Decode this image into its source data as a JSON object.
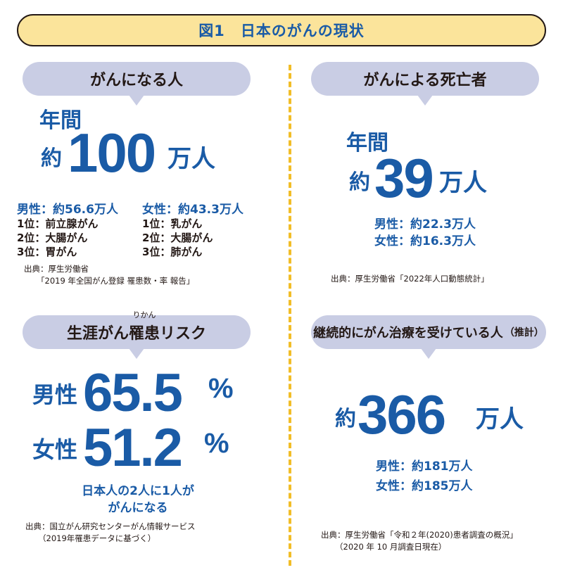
{
  "title": {
    "fig": "図1",
    "text": "日本のがんの現状"
  },
  "incidence": {
    "heading": "がんになる人",
    "label_year": "年間",
    "prefix": "約",
    "number": "100",
    "unit": "万人",
    "male_label": "男性：約56.6万人",
    "female_label": "女性：約43.3万人",
    "male_ranks": [
      "1位：前立腺がん",
      "2位：大腸がん",
      "3位：胃がん"
    ],
    "female_ranks": [
      "1位：乳がん",
      "2位：大腸がん",
      "3位：肺がん"
    ],
    "source_line1": "出典：厚生労働省",
    "source_line2": "「2019 年全国がん登録 罹患数・率 報告」"
  },
  "deaths": {
    "heading": "がんによる死亡者",
    "label_year": "年間",
    "prefix": "約",
    "number": "39",
    "unit": "万人",
    "male": "男性：約22.3万人",
    "female": "女性：約16.3万人",
    "source": "出典：厚生労働省「2022年人口動態統計」"
  },
  "lifetime_risk": {
    "heading_part1": "生涯がん",
    "heading_ruby_base": "罹患",
    "heading_ruby_text": "りかん",
    "heading_part2": "リスク",
    "male_label": "男性",
    "male_value": "65.5",
    "female_label": "女性",
    "female_value": "51.2",
    "percent": "%",
    "note_line1": "日本人の2人に1人が",
    "note_line2": "がんになる",
    "source_line1": "出典：国立がん研究センターがん情報サービス",
    "source_line2": "（2019年罹患データに基づく）"
  },
  "treatment": {
    "heading": "継続的にがん治療を受けている人",
    "heading_note": "（推計）",
    "prefix": "約",
    "number": "366",
    "unit": "万人",
    "male": "男性：約181万人",
    "female": "女性：約185万人",
    "source_line1": "出典：厚生労働省「令和２年(2020)患者調査の概況」",
    "source_line2": "（2020 年 10 月調査日現在）"
  },
  "colors": {
    "accent_blue": "#1a5ba6",
    "bubble": "#c9cde4",
    "title_bg": "#fbe49b",
    "divider": "#f2bd27"
  }
}
